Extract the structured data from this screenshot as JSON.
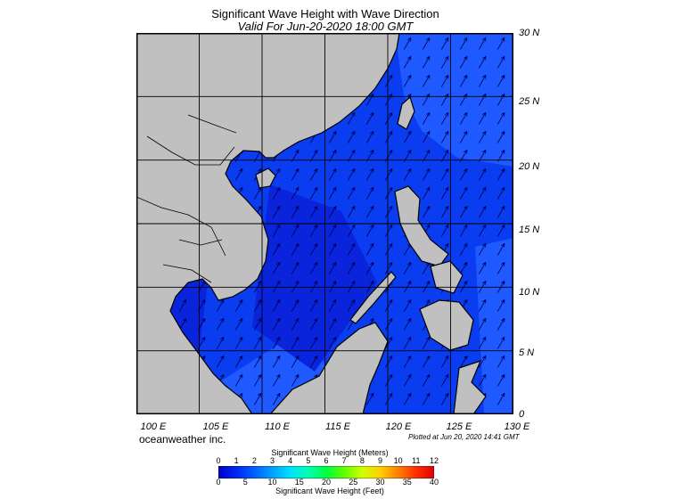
{
  "title": "Significant Wave Height with Wave Direction",
  "subtitle": "Valid For Jun-20-2020 18:00 GMT",
  "lon_labels": [
    "100 E",
    "105 E",
    "110 E",
    "115 E",
    "120 E",
    "125 E",
    "130 E"
  ],
  "lat_labels": [
    "30 N",
    "25 N",
    "20 N",
    "15 N",
    "10 N",
    "5 N",
    "0"
  ],
  "map_extent": {
    "lon": [
      100,
      130
    ],
    "lat": [
      0,
      30
    ]
  },
  "graticule_step_deg": 5,
  "brand": "oceanweather inc.",
  "plotted_text": "Plotted at Jun 20, 2020 14:41 GMT",
  "colorbar": {
    "meters_title": "Significant Wave Height (Meters)",
    "meters_ticks": [
      "0",
      "1",
      "2",
      "3",
      "4",
      "5",
      "6",
      "7",
      "8",
      "9",
      "10",
      "11",
      "12"
    ],
    "feet_title": "Significant Wave Height (Feet)",
    "feet_ticks": [
      "0",
      "5",
      "10",
      "15",
      "20",
      "25",
      "30",
      "35",
      "40"
    ],
    "colors": [
      "#0000c8",
      "#0028f0",
      "#0060ff",
      "#00a0ff",
      "#00e0ff",
      "#00ffb0",
      "#00ff40",
      "#60ff00",
      "#d0ff00",
      "#ffd000",
      "#ff8000",
      "#ff3000",
      "#e00000"
    ]
  },
  "colors": {
    "land": "#c0c0c0",
    "sea_low": "#0a24dc",
    "sea_mid": "#0a3cf0",
    "sea_high": "#1e5aff",
    "grid": "#000000",
    "arrow": "#000050"
  },
  "wave_direction": "southwest-to-northeast"
}
